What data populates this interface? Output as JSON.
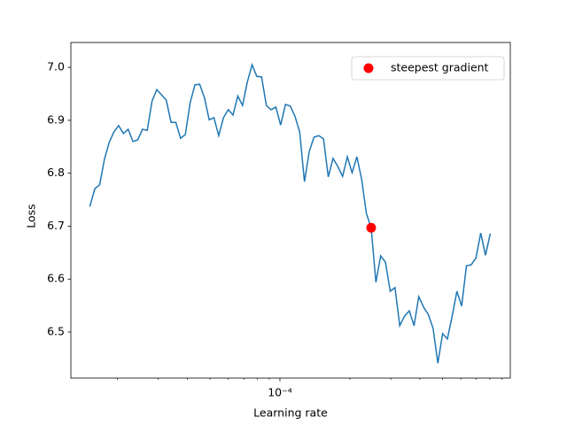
{
  "chart_data": {
    "type": "line",
    "xlabel": "Learning rate",
    "ylabel": "Loss",
    "xscale": "log",
    "xlim": [
      1.26e-05,
      0.00098
    ],
    "ylim": [
      6.413,
      7.047
    ],
    "xticks": [
      {
        "value": 0.0001,
        "label": "10⁻⁴"
      }
    ],
    "yticks": [
      {
        "value": 6.5,
        "label": "6.5"
      },
      {
        "value": 6.6,
        "label": "6.6"
      },
      {
        "value": 6.7,
        "label": "6.7"
      },
      {
        "value": 6.8,
        "label": "6.8"
      },
      {
        "value": 6.9,
        "label": "6.9"
      },
      {
        "value": 7.0,
        "label": "7.0"
      }
    ],
    "legend": "upper right",
    "series": [
      {
        "type": "line",
        "color": "#1f77b4",
        "x": [
          1.52e-05,
          1.598e-05,
          1.675e-05,
          1.756e-05,
          1.841e-05,
          1.93e-05,
          2.023e-05,
          2.121e-05,
          2.223e-05,
          2.331e-05,
          2.443e-05,
          2.562e-05,
          2.685e-05,
          2.815e-05,
          2.951e-05,
          3.094e-05,
          3.243e-05,
          3.4e-05,
          3.565e-05,
          3.737e-05,
          3.917e-05,
          4.107e-05,
          4.305e-05,
          4.514e-05,
          4.732e-05,
          4.961e-05,
          5.2e-05,
          5.452e-05,
          5.715e-05,
          5.992e-05,
          6.281e-05,
          6.585e-05,
          6.902e-05,
          7.236e-05,
          7.586e-05,
          7.953e-05,
          8.337e-05,
          8.74e-05,
          9.162e-05,
          9.605e-05,
          0.0001007,
          0.0001056,
          0.0001107,
          0.000116,
          0.0001216,
          0.0001275,
          0.0001337,
          0.0001401,
          0.0001469,
          0.000154,
          0.0001614,
          0.0001692,
          0.0001774,
          0.000186,
          0.000195,
          0.0002044,
          0.0002143,
          0.0002246,
          0.0002355,
          0.0002469,
          0.0002588,
          0.0002713,
          0.0002844,
          0.0002982,
          0.0003126,
          0.0003277,
          0.0003436,
          0.0003602,
          0.0003776,
          0.0003958,
          0.000415,
          0.000435,
          0.000456,
          0.0004781,
          0.0005012,
          0.0005254,
          0.0005508,
          0.0005774,
          0.0006053,
          0.0006346,
          0.0006653,
          0.0006974,
          0.0007311,
          0.0007665,
          0.0008035
        ],
        "values": [
          6.737,
          6.771,
          6.778,
          6.826,
          6.858,
          6.878,
          6.89,
          6.875,
          6.883,
          6.86,
          6.863,
          6.883,
          6.881,
          6.936,
          6.958,
          6.948,
          6.938,
          6.896,
          6.896,
          6.866,
          6.873,
          6.933,
          6.967,
          6.968,
          6.943,
          6.901,
          6.905,
          6.871,
          6.905,
          6.92,
          6.91,
          6.946,
          6.928,
          6.972,
          7.005,
          6.983,
          6.982,
          6.928,
          6.92,
          6.925,
          6.891,
          6.93,
          6.927,
          6.908,
          6.878,
          6.784,
          6.841,
          6.868,
          6.871,
          6.865,
          6.793,
          6.828,
          6.813,
          6.794,
          6.831,
          6.801,
          6.831,
          6.789,
          6.724,
          6.697,
          6.594,
          6.644,
          6.632,
          6.577,
          6.584,
          6.512,
          6.53,
          6.54,
          6.512,
          6.567,
          6.547,
          6.533,
          6.507,
          6.441,
          6.497,
          6.487,
          6.53,
          6.577,
          6.549,
          6.625,
          6.627,
          6.64,
          6.687,
          6.645,
          6.686
        ]
      },
      {
        "type": "scatter",
        "name": "steepest gradient",
        "color": "#ff0000",
        "x": [
          0.0002469
        ],
        "values": [
          6.697
        ]
      }
    ]
  }
}
